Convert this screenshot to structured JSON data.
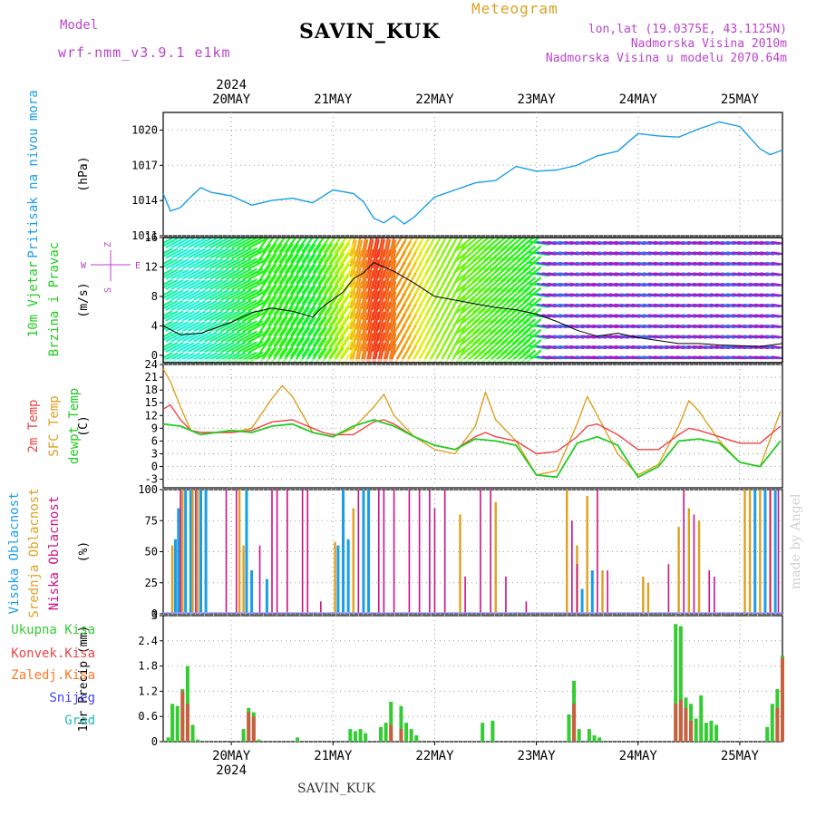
{
  "header": {
    "model_label": "Model",
    "model_name": "wrf-nmm_v3.9.1 e1km",
    "meteogram_label": "Meteogram",
    "station": "SAVIN_KUK",
    "location": "lon,lat (19.0375E, 43.1125N)",
    "elevation": "Nadmorska Visina 2010m",
    "model_elevation": "Nadmorska Visina u modelu 2070.64m"
  },
  "footer_station": "SAVIN_KUK",
  "credit": "made by Angel",
  "time_axis": {
    "year": "2024",
    "days": [
      "20MAY",
      "21MAY",
      "22MAY",
      "23MAY",
      "24MAY",
      "25MAY"
    ]
  },
  "colors": {
    "pressure": "#1a9ee8",
    "temp2m": "#ee4444",
    "sfc": "#dda020",
    "dew": "#22cc22",
    "high_cloud": "#1a9ee8",
    "mid_cloud": "#dda020",
    "low_cloud": "#cc1188",
    "total_precip": "#33cc33",
    "convective_precip": "#ee4444",
    "snow": "#4444ee",
    "freezing": "#ff7722",
    "grad": "#22bbbb",
    "label_purple": "#bb44cc",
    "label_orange": "#dda020"
  },
  "chart_data": [
    {
      "type": "line",
      "title": "Pritisak na nivou mora",
      "ylabel": "(hPa)",
      "ylim": [
        1011,
        1021.5
      ],
      "yticks": [
        "1011",
        "1014",
        "1017",
        "1020"
      ],
      "xlim": [
        -0.67,
        5.42
      ],
      "series": [
        {
          "name": "Pritisak na nivou mora",
          "x": [
            -0.67,
            -0.6,
            -0.5,
            -0.4,
            -0.3,
            -0.2,
            0,
            0.2,
            0.4,
            0.6,
            0.8,
            1.0,
            1.2,
            1.3,
            1.4,
            1.5,
            1.6,
            1.7,
            1.8,
            2.0,
            2.2,
            2.4,
            2.6,
            2.8,
            3.0,
            3.2,
            3.4,
            3.6,
            3.8,
            4.0,
            4.2,
            4.4,
            4.6,
            4.8,
            5.0,
            5.2,
            5.3,
            5.42
          ],
          "values": [
            1014.6,
            1013.1,
            1013.4,
            1014.3,
            1015.1,
            1014.7,
            1014.4,
            1013.6,
            1014.0,
            1014.2,
            1013.8,
            1014.9,
            1014.6,
            1013.9,
            1012.5,
            1012.1,
            1012.7,
            1012.0,
            1012.6,
            1014.3,
            1014.9,
            1015.5,
            1015.7,
            1016.9,
            1016.5,
            1016.6,
            1017.0,
            1017.8,
            1018.2,
            1019.7,
            1019.5,
            1019.4,
            1020.1,
            1020.7,
            1020.3,
            1018.4,
            1017.9,
            1018.3
          ]
        }
      ]
    },
    {
      "type": "line",
      "title": "10m Vjetar",
      "subtitle": "Brzina i Pravac",
      "ylabel": "(m/s)",
      "ylim": [
        -1,
        16
      ],
      "yticks": [
        "0",
        "4",
        "8",
        "12",
        "16"
      ],
      "xlim": [
        -0.67,
        5.42
      ],
      "direction_key": {
        "top": "Z",
        "left": "W",
        "right": "E",
        "bottom": "S"
      },
      "series": [
        {
          "name": "10m Vjetar Brzina",
          "x": [
            -0.67,
            -0.5,
            -0.3,
            0,
            0.2,
            0.4,
            0.6,
            0.8,
            0.9,
            1.0,
            1.1,
            1.2,
            1.3,
            1.4,
            1.5,
            1.6,
            1.8,
            2.0,
            2.2,
            2.4,
            2.6,
            2.8,
            3.0,
            3.2,
            3.4,
            3.6,
            3.8,
            4.0,
            4.2,
            4.4,
            4.6,
            4.8,
            5.0,
            5.2,
            5.42
          ],
          "values": [
            4.0,
            2.8,
            3.0,
            4.5,
            5.8,
            6.4,
            6.0,
            5.2,
            6.6,
            7.6,
            8.6,
            10.4,
            11.2,
            12.6,
            12.0,
            11.4,
            9.8,
            8.0,
            7.5,
            7.0,
            6.5,
            6.2,
            5.6,
            4.6,
            3.4,
            2.6,
            3.0,
            2.4,
            2.0,
            1.6,
            1.6,
            1.4,
            1.3,
            1.2,
            1.6
          ]
        }
      ]
    },
    {
      "type": "line",
      "ylabel": "(C)",
      "ylim": [
        -5,
        24
      ],
      "yticks": [
        "-3",
        "0",
        "3",
        "6",
        "9",
        "12",
        "15",
        "18",
        "21",
        "24"
      ],
      "xlim": [
        -0.67,
        5.42
      ],
      "series": [
        {
          "name": "2m Temp",
          "x": [
            -0.67,
            -0.6,
            -0.5,
            -0.4,
            -0.3,
            -0.2,
            0,
            0.2,
            0.4,
            0.6,
            0.8,
            0.9,
            1.0,
            1.2,
            1.4,
            1.5,
            1.6,
            1.8,
            2.0,
            2.2,
            2.4,
            2.5,
            2.6,
            2.8,
            3.0,
            3.2,
            3.4,
            3.5,
            3.6,
            3.8,
            4.0,
            4.2,
            4.4,
            4.5,
            4.6,
            4.8,
            5.0,
            5.2,
            5.4
          ],
          "values": [
            13.5,
            14.5,
            11.0,
            8.5,
            8.0,
            8.0,
            8.0,
            8.5,
            10.5,
            11.0,
            9.0,
            8.0,
            7.5,
            7.5,
            10.5,
            11.0,
            10.0,
            7.0,
            5.0,
            4.0,
            7.0,
            8.0,
            7.0,
            6.0,
            3.0,
            3.5,
            7.0,
            9.5,
            10.0,
            7.5,
            4.0,
            4.0,
            7.5,
            9.0,
            8.5,
            7.0,
            5.5,
            5.5,
            9.5
          ]
        },
        {
          "name": "SFC Temp",
          "x": [
            -0.67,
            -0.6,
            -0.5,
            -0.4,
            -0.3,
            -0.2,
            0,
            0.2,
            0.4,
            0.5,
            0.6,
            0.8,
            0.9,
            1.0,
            1.2,
            1.4,
            1.5,
            1.6,
            1.8,
            2.0,
            2.2,
            2.4,
            2.5,
            2.6,
            2.8,
            3.0,
            3.2,
            3.4,
            3.5,
            3.6,
            3.8,
            4.0,
            4.2,
            4.4,
            4.5,
            4.6,
            4.8,
            5.0,
            5.2,
            5.4
          ],
          "values": [
            23.0,
            20.0,
            14.0,
            8.5,
            8.0,
            8.0,
            8.0,
            9.0,
            16.0,
            19.0,
            16.5,
            8.0,
            7.5,
            7.0,
            9.0,
            14.0,
            17.0,
            12.0,
            7.0,
            4.0,
            3.0,
            9.5,
            17.5,
            11.0,
            6.0,
            -2.0,
            -1.0,
            10.0,
            16.5,
            12.0,
            3.0,
            -2.0,
            0.5,
            9.5,
            15.5,
            13.0,
            6.0,
            1.0,
            0.0,
            13.0
          ]
        },
        {
          "name": "dewpt Temp",
          "x": [
            -0.67,
            -0.5,
            -0.3,
            0,
            0.2,
            0.4,
            0.6,
            0.8,
            1.0,
            1.2,
            1.4,
            1.6,
            1.8,
            2.0,
            2.2,
            2.4,
            2.6,
            2.8,
            3.0,
            3.2,
            3.4,
            3.6,
            3.8,
            4.0,
            4.2,
            4.4,
            4.6,
            4.8,
            5.0,
            5.2,
            5.4
          ],
          "values": [
            10.0,
            9.5,
            7.5,
            8.5,
            8.0,
            9.5,
            10.0,
            8.0,
            7.0,
            9.5,
            11.0,
            9.5,
            7.0,
            5.0,
            4.0,
            6.5,
            6.0,
            5.0,
            -2.0,
            -2.5,
            5.5,
            7.0,
            5.0,
            -2.5,
            0.0,
            6.0,
            6.5,
            5.5,
            1.0,
            0.0,
            6.0
          ]
        }
      ]
    },
    {
      "type": "bar",
      "ylabel": "(%)",
      "ylim": [
        0,
        100
      ],
      "yticks": [
        "0",
        "25",
        "50",
        "75",
        "100"
      ],
      "xlim": [
        -0.67,
        5.42
      ],
      "series": [
        {
          "name": "Visoka Oblacnost",
          "x": [
            -0.55,
            -0.52,
            -0.45,
            -0.4,
            -0.3,
            -0.25,
            0.15,
            0.2,
            0.35,
            1.05,
            1.1,
            1.15,
            1.3,
            1.35,
            3.45,
            3.55,
            5.15,
            5.25,
            5.35
          ],
          "values": [
            60,
            85,
            100,
            100,
            100,
            100,
            100,
            35,
            28,
            55,
            100,
            60,
            100,
            100,
            20,
            35,
            100,
            100,
            100
          ]
        },
        {
          "name": "Srednja Oblacnost",
          "x": [
            -0.58,
            -0.48,
            -0.38,
            -0.33,
            0.08,
            0.12,
            1.02,
            1.2,
            2.25,
            2.6,
            3.3,
            3.4,
            3.5,
            3.65,
            4.05,
            4.1,
            4.4,
            4.5,
            4.6,
            5.05,
            5.1,
            5.2,
            5.3
          ],
          "values": [
            55,
            100,
            100,
            100,
            100,
            55,
            58,
            85,
            80,
            90,
            100,
            55,
            95,
            35,
            30,
            25,
            70,
            85,
            75,
            100,
            100,
            100,
            100
          ]
        },
        {
          "name": "Niska Oblacnost",
          "x": [
            -0.5,
            -0.35,
            -0.05,
            0.05,
            0.28,
            0.4,
            0.45,
            0.55,
            0.7,
            0.75,
            0.88,
            1.25,
            1.45,
            1.5,
            1.6,
            1.75,
            1.85,
            1.95,
            2.0,
            2.1,
            2.3,
            2.45,
            2.55,
            2.7,
            2.9,
            3.35,
            3.4,
            3.6,
            3.7,
            4.3,
            4.45,
            4.55,
            4.7,
            4.75,
            5.3,
            5.38
          ],
          "values": [
            100,
            100,
            100,
            100,
            55,
            100,
            100,
            100,
            100,
            100,
            10,
            100,
            100,
            100,
            100,
            100,
            100,
            100,
            85,
            100,
            30,
            100,
            100,
            30,
            10,
            75,
            40,
            100,
            35,
            40,
            100,
            80,
            35,
            30,
            100,
            100
          ]
        }
      ]
    },
    {
      "type": "bar",
      "ylabel": "1hr Precip (mm)",
      "ylim": [
        0,
        3
      ],
      "yticks": [
        "0",
        "0.6",
        "1.2",
        "1.8",
        "2.4",
        "3"
      ],
      "xlim": [
        -0.67,
        5.42
      ],
      "series": [
        {
          "name": "Ukupna Kisa",
          "x": [
            -0.62,
            -0.58,
            -0.53,
            -0.48,
            -0.43,
            -0.38,
            -0.33,
            0.12,
            0.17,
            0.22,
            0.27,
            0.65,
            1.17,
            1.22,
            1.27,
            1.32,
            1.47,
            1.52,
            1.57,
            1.67,
            1.72,
            1.77,
            1.82,
            2.47,
            2.57,
            3.32,
            3.37,
            3.42,
            3.52,
            3.57,
            3.62,
            4.37,
            4.42,
            4.47,
            4.52,
            4.57,
            4.62,
            4.67,
            4.72,
            4.77,
            5.27,
            5.32,
            5.37,
            5.42
          ],
          "values": [
            0.1,
            0.9,
            0.85,
            1.25,
            1.8,
            0.4,
            0.05,
            0.3,
            0.8,
            0.7,
            0.05,
            0.1,
            0.3,
            0.25,
            0.3,
            0.2,
            0.35,
            0.45,
            0.95,
            0.85,
            0.45,
            0.3,
            0.15,
            0.45,
            0.5,
            0.65,
            1.45,
            0.3,
            0.3,
            0.15,
            0.1,
            2.8,
            2.75,
            1.05,
            0.9,
            0.55,
            1.1,
            0.45,
            0.5,
            0.4,
            0.35,
            0.9,
            1.25,
            2.05
          ]
        },
        {
          "name": "Konvek.Kisa",
          "x": [
            -0.48,
            -0.43,
            0.17,
            0.22,
            1.57,
            1.67,
            3.37,
            4.37,
            4.42,
            4.47,
            4.52,
            5.37,
            5.42
          ],
          "values": [
            1.2,
            0.9,
            0.7,
            0.6,
            0.4,
            0.3,
            0.9,
            0.9,
            1.0,
            0.8,
            0.5,
            0.8,
            2.0
          ]
        }
      ]
    }
  ],
  "legends": {
    "pressure": [
      "Pritisak na nivou mora"
    ],
    "wind": [
      "10m Vjetar",
      "Brzina i Pravac"
    ],
    "temp": [
      "2m Temp",
      "SFC Temp",
      "dewpt Temp"
    ],
    "cloud": [
      "Visoka Oblacnost",
      "Srednja Oblacnost",
      "Niska Oblacnost"
    ],
    "precip": [
      "Ukupna Kisa",
      "Konvek.Kisa",
      "Zaledj.Kisa",
      "Snijeg",
      "Grad"
    ]
  }
}
